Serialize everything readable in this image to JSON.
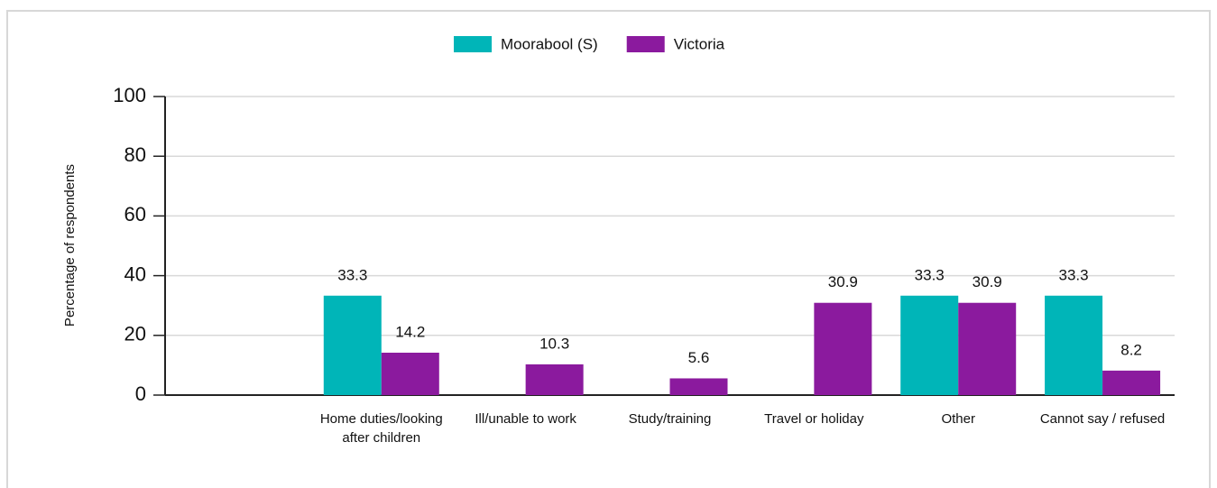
{
  "chart_data": {
    "type": "bar",
    "ylabel": "Percentage of respondents",
    "categories": [
      null,
      "Home duties/looking after children",
      "Ill/unable to work",
      "Study/training",
      "Travel or holiday",
      "Other",
      "Cannot say / refused"
    ],
    "series": [
      {
        "name": "Moorabool (S)",
        "color": "#00b5b8",
        "values": [
          null,
          33.3,
          null,
          null,
          null,
          33.3,
          33.3
        ]
      },
      {
        "name": "Victoria",
        "color": "#8b1a9e",
        "values": [
          null,
          14.2,
          10.3,
          5.6,
          30.9,
          30.9,
          8.2
        ]
      }
    ],
    "ylim": [
      0,
      100
    ],
    "yticks": [
      0,
      20,
      40,
      60,
      80,
      100
    ],
    "grid": true
  }
}
